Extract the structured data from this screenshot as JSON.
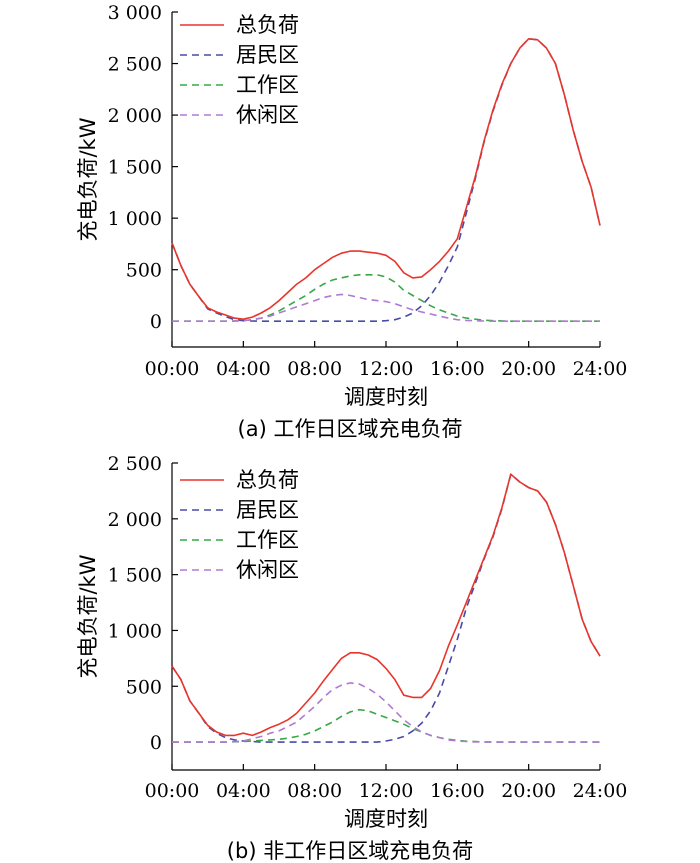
{
  "colors": {
    "total": "#e8352b",
    "residential": "#4a4aa8",
    "work": "#38a846",
    "leisure": "#b07ad0"
  },
  "chart_data": [
    {
      "type": "line",
      "caption": "(a)  工作日区域充电负荷",
      "xlabel": "调度时刻",
      "ylabel": "充电负荷/kW",
      "xlim": [
        0,
        24
      ],
      "ylim": [
        -250,
        3000
      ],
      "xticks": [
        0,
        4,
        8,
        12,
        16,
        20,
        24
      ],
      "xtick_labels": [
        "00:00",
        "04:00",
        "08:00",
        "12:00",
        "16:00",
        "20:00",
        "24:00"
      ],
      "yticks": [
        0,
        500,
        1000,
        1500,
        2000,
        2500,
        3000
      ],
      "ytick_labels": [
        "0",
        "500",
        "1 000",
        "1 500",
        "2 000",
        "2 500",
        "3 000"
      ],
      "legend_position": "top-left",
      "series": [
        {
          "name": "总负荷",
          "key": "total",
          "dash": "solid",
          "x": [
            0,
            0.5,
            1,
            1.5,
            2,
            2.5,
            3,
            3.5,
            4,
            4.5,
            5,
            5.5,
            6,
            6.5,
            7,
            7.5,
            8,
            8.5,
            9,
            9.5,
            10,
            10.5,
            11,
            11.5,
            12,
            12.5,
            13,
            13.5,
            14,
            14.5,
            15,
            15.5,
            16,
            16.5,
            17,
            17.5,
            18,
            18.5,
            19,
            19.5,
            20,
            20.5,
            21,
            21.5,
            22,
            22.5,
            23,
            23.5,
            24
          ],
          "y": [
            760,
            540,
            360,
            240,
            130,
            90,
            60,
            30,
            20,
            40,
            80,
            130,
            200,
            280,
            360,
            420,
            500,
            560,
            620,
            660,
            680,
            680,
            670,
            660,
            640,
            580,
            470,
            420,
            430,
            500,
            580,
            680,
            800,
            1100,
            1400,
            1750,
            2050,
            2300,
            2500,
            2650,
            2740,
            2730,
            2650,
            2500,
            2200,
            1850,
            1550,
            1300,
            930
          ]
        },
        {
          "name": "居民区",
          "key": "residential",
          "dash": "dash",
          "x": [
            0,
            0.5,
            1,
            1.5,
            2,
            2.5,
            3,
            3.5,
            4,
            4.5,
            5,
            5.5,
            6,
            6.5,
            7,
            7.5,
            8,
            8.5,
            9,
            9.5,
            10,
            10.5,
            11,
            11.5,
            12,
            12.5,
            13,
            13.5,
            14,
            14.5,
            15,
            15.5,
            16,
            16.5,
            17,
            17.5,
            18,
            18.5,
            19,
            19.5,
            20,
            20.5,
            21,
            21.5,
            22,
            22.5,
            23,
            23.5,
            24
          ],
          "y": [
            760,
            540,
            360,
            240,
            120,
            80,
            45,
            15,
            5,
            2,
            0,
            0,
            0,
            0,
            0,
            0,
            0,
            0,
            0,
            0,
            0,
            0,
            0,
            0,
            5,
            15,
            40,
            80,
            150,
            250,
            380,
            540,
            720,
            1050,
            1380,
            1740,
            2040,
            2290,
            2500,
            2650,
            2740,
            2730,
            2650,
            2500,
            2200,
            1850,
            1550,
            1300,
            930
          ]
        },
        {
          "name": "工作区",
          "key": "work",
          "dash": "dash",
          "x": [
            0,
            1,
            2,
            3,
            4,
            4.5,
            5,
            5.5,
            6,
            6.5,
            7,
            7.5,
            8,
            8.5,
            9,
            9.5,
            10,
            10.5,
            11,
            11.5,
            12,
            12.5,
            13,
            13.5,
            14,
            14.5,
            15,
            15.5,
            16,
            16.5,
            17,
            17.5,
            18,
            19,
            20,
            21,
            22,
            23,
            24
          ],
          "y": [
            0,
            0,
            0,
            0,
            5,
            15,
            30,
            60,
            100,
            150,
            200,
            250,
            310,
            360,
            400,
            420,
            440,
            450,
            450,
            450,
            430,
            380,
            300,
            250,
            200,
            150,
            110,
            80,
            50,
            30,
            20,
            10,
            5,
            0,
            0,
            0,
            0,
            0,
            0
          ]
        },
        {
          "name": "休闲区",
          "key": "leisure",
          "dash": "dash",
          "x": [
            0,
            1,
            2,
            3,
            4,
            4.5,
            5,
            5.5,
            6,
            6.5,
            7,
            7.5,
            8,
            8.5,
            9,
            9.5,
            10,
            10.5,
            11,
            11.5,
            12,
            12.5,
            13,
            13.5,
            14,
            14.5,
            15,
            15.5,
            16,
            16.5,
            17,
            17.5,
            18,
            19,
            20,
            21,
            22,
            23,
            24
          ],
          "y": [
            0,
            0,
            0,
            0,
            5,
            15,
            30,
            50,
            80,
            110,
            140,
            170,
            200,
            230,
            250,
            260,
            250,
            230,
            210,
            200,
            190,
            170,
            140,
            110,
            90,
            70,
            50,
            30,
            15,
            8,
            5,
            2,
            0,
            0,
            0,
            0,
            0,
            0,
            0
          ]
        }
      ]
    },
    {
      "type": "line",
      "caption": "(b)  非工作日区域充电负荷",
      "xlabel": "调度时刻",
      "ylabel": "充电负荷/kW",
      "xlim": [
        0,
        24
      ],
      "ylim": [
        -250,
        2500
      ],
      "xticks": [
        0,
        4,
        8,
        12,
        16,
        20,
        24
      ],
      "xtick_labels": [
        "00:00",
        "04:00",
        "08:00",
        "12:00",
        "16:00",
        "20:00",
        "24:00"
      ],
      "yticks": [
        0,
        500,
        1000,
        1500,
        2000,
        2500
      ],
      "ytick_labels": [
        "0",
        "500",
        "1 000",
        "1 500",
        "2 000",
        "2 500"
      ],
      "legend_position": "top-left",
      "series": [
        {
          "name": "总负荷",
          "key": "total",
          "dash": "solid",
          "x": [
            0,
            0.5,
            1,
            1.5,
            2,
            2.5,
            3,
            3.5,
            4,
            4.5,
            5,
            5.5,
            6,
            6.5,
            7,
            7.5,
            8,
            8.5,
            9,
            9.5,
            10,
            10.5,
            11,
            11.5,
            12,
            12.5,
            13,
            13.5,
            14,
            14.5,
            15,
            15.5,
            16,
            16.5,
            17,
            17.5,
            18,
            18.5,
            19,
            19.5,
            20,
            20.5,
            21,
            21.5,
            22,
            22.5,
            23,
            23.5,
            24
          ],
          "y": [
            680,
            560,
            370,
            260,
            150,
            90,
            60,
            60,
            80,
            60,
            90,
            130,
            160,
            200,
            260,
            350,
            440,
            550,
            650,
            750,
            800,
            800,
            780,
            740,
            660,
            560,
            420,
            400,
            400,
            480,
            640,
            860,
            1050,
            1250,
            1450,
            1650,
            1850,
            2100,
            2400,
            2330,
            2280,
            2250,
            2150,
            1950,
            1700,
            1400,
            1100,
            900,
            770
          ]
        },
        {
          "name": "居民区",
          "key": "residential",
          "dash": "dash",
          "x": [
            0,
            0.5,
            1,
            1.5,
            2,
            2.5,
            3,
            3.5,
            4,
            4.5,
            5,
            5.5,
            6,
            6.5,
            7,
            7.5,
            8,
            8.5,
            9,
            9.5,
            10,
            10.5,
            11,
            11.5,
            12,
            12.5,
            13,
            13.5,
            14,
            14.5,
            15,
            15.5,
            16,
            16.5,
            17,
            17.5,
            18,
            18.5,
            19,
            19.5,
            20,
            20.5,
            21,
            21.5,
            22,
            22.5,
            23,
            23.5,
            24
          ],
          "y": [
            680,
            560,
            370,
            260,
            140,
            80,
            40,
            20,
            10,
            5,
            0,
            0,
            0,
            0,
            0,
            0,
            0,
            0,
            0,
            0,
            0,
            0,
            0,
            0,
            10,
            25,
            50,
            100,
            170,
            280,
            440,
            680,
            920,
            1200,
            1420,
            1640,
            1840,
            2090,
            2400,
            2330,
            2280,
            2250,
            2150,
            1950,
            1700,
            1400,
            1100,
            900,
            770
          ]
        },
        {
          "name": "工作区",
          "key": "work",
          "dash": "dash",
          "x": [
            0,
            1,
            2,
            3,
            4,
            4.5,
            5,
            5.5,
            6,
            6.5,
            7,
            7.5,
            8,
            8.5,
            9,
            9.5,
            10,
            10.5,
            11,
            11.5,
            12,
            12.5,
            13,
            13.5,
            14,
            14.5,
            15,
            15.5,
            16,
            16.5,
            17,
            17.5,
            18,
            19,
            20,
            21,
            22,
            23,
            24
          ],
          "y": [
            0,
            0,
            0,
            0,
            5,
            10,
            15,
            20,
            25,
            35,
            50,
            70,
            100,
            140,
            180,
            230,
            270,
            290,
            280,
            250,
            220,
            190,
            160,
            120,
            90,
            60,
            40,
            25,
            15,
            8,
            4,
            2,
            0,
            0,
            0,
            0,
            0,
            0,
            0
          ]
        },
        {
          "name": "休闲区",
          "key": "leisure",
          "dash": "dash",
          "x": [
            0,
            1,
            2,
            3,
            4,
            4.5,
            5,
            5.5,
            6,
            6.5,
            7,
            7.5,
            8,
            8.5,
            9,
            9.5,
            10,
            10.5,
            11,
            11.5,
            12,
            12.5,
            13,
            13.5,
            14,
            14.5,
            15,
            15.5,
            16,
            16.5,
            17,
            17.5,
            18,
            19,
            20,
            21,
            22,
            23,
            24
          ],
          "y": [
            0,
            0,
            0,
            0,
            10,
            30,
            50,
            80,
            100,
            140,
            180,
            250,
            320,
            400,
            470,
            510,
            530,
            520,
            480,
            430,
            360,
            280,
            200,
            140,
            90,
            60,
            40,
            20,
            10,
            5,
            2,
            0,
            0,
            0,
            0,
            0,
            0,
            0,
            0
          ]
        }
      ]
    }
  ]
}
